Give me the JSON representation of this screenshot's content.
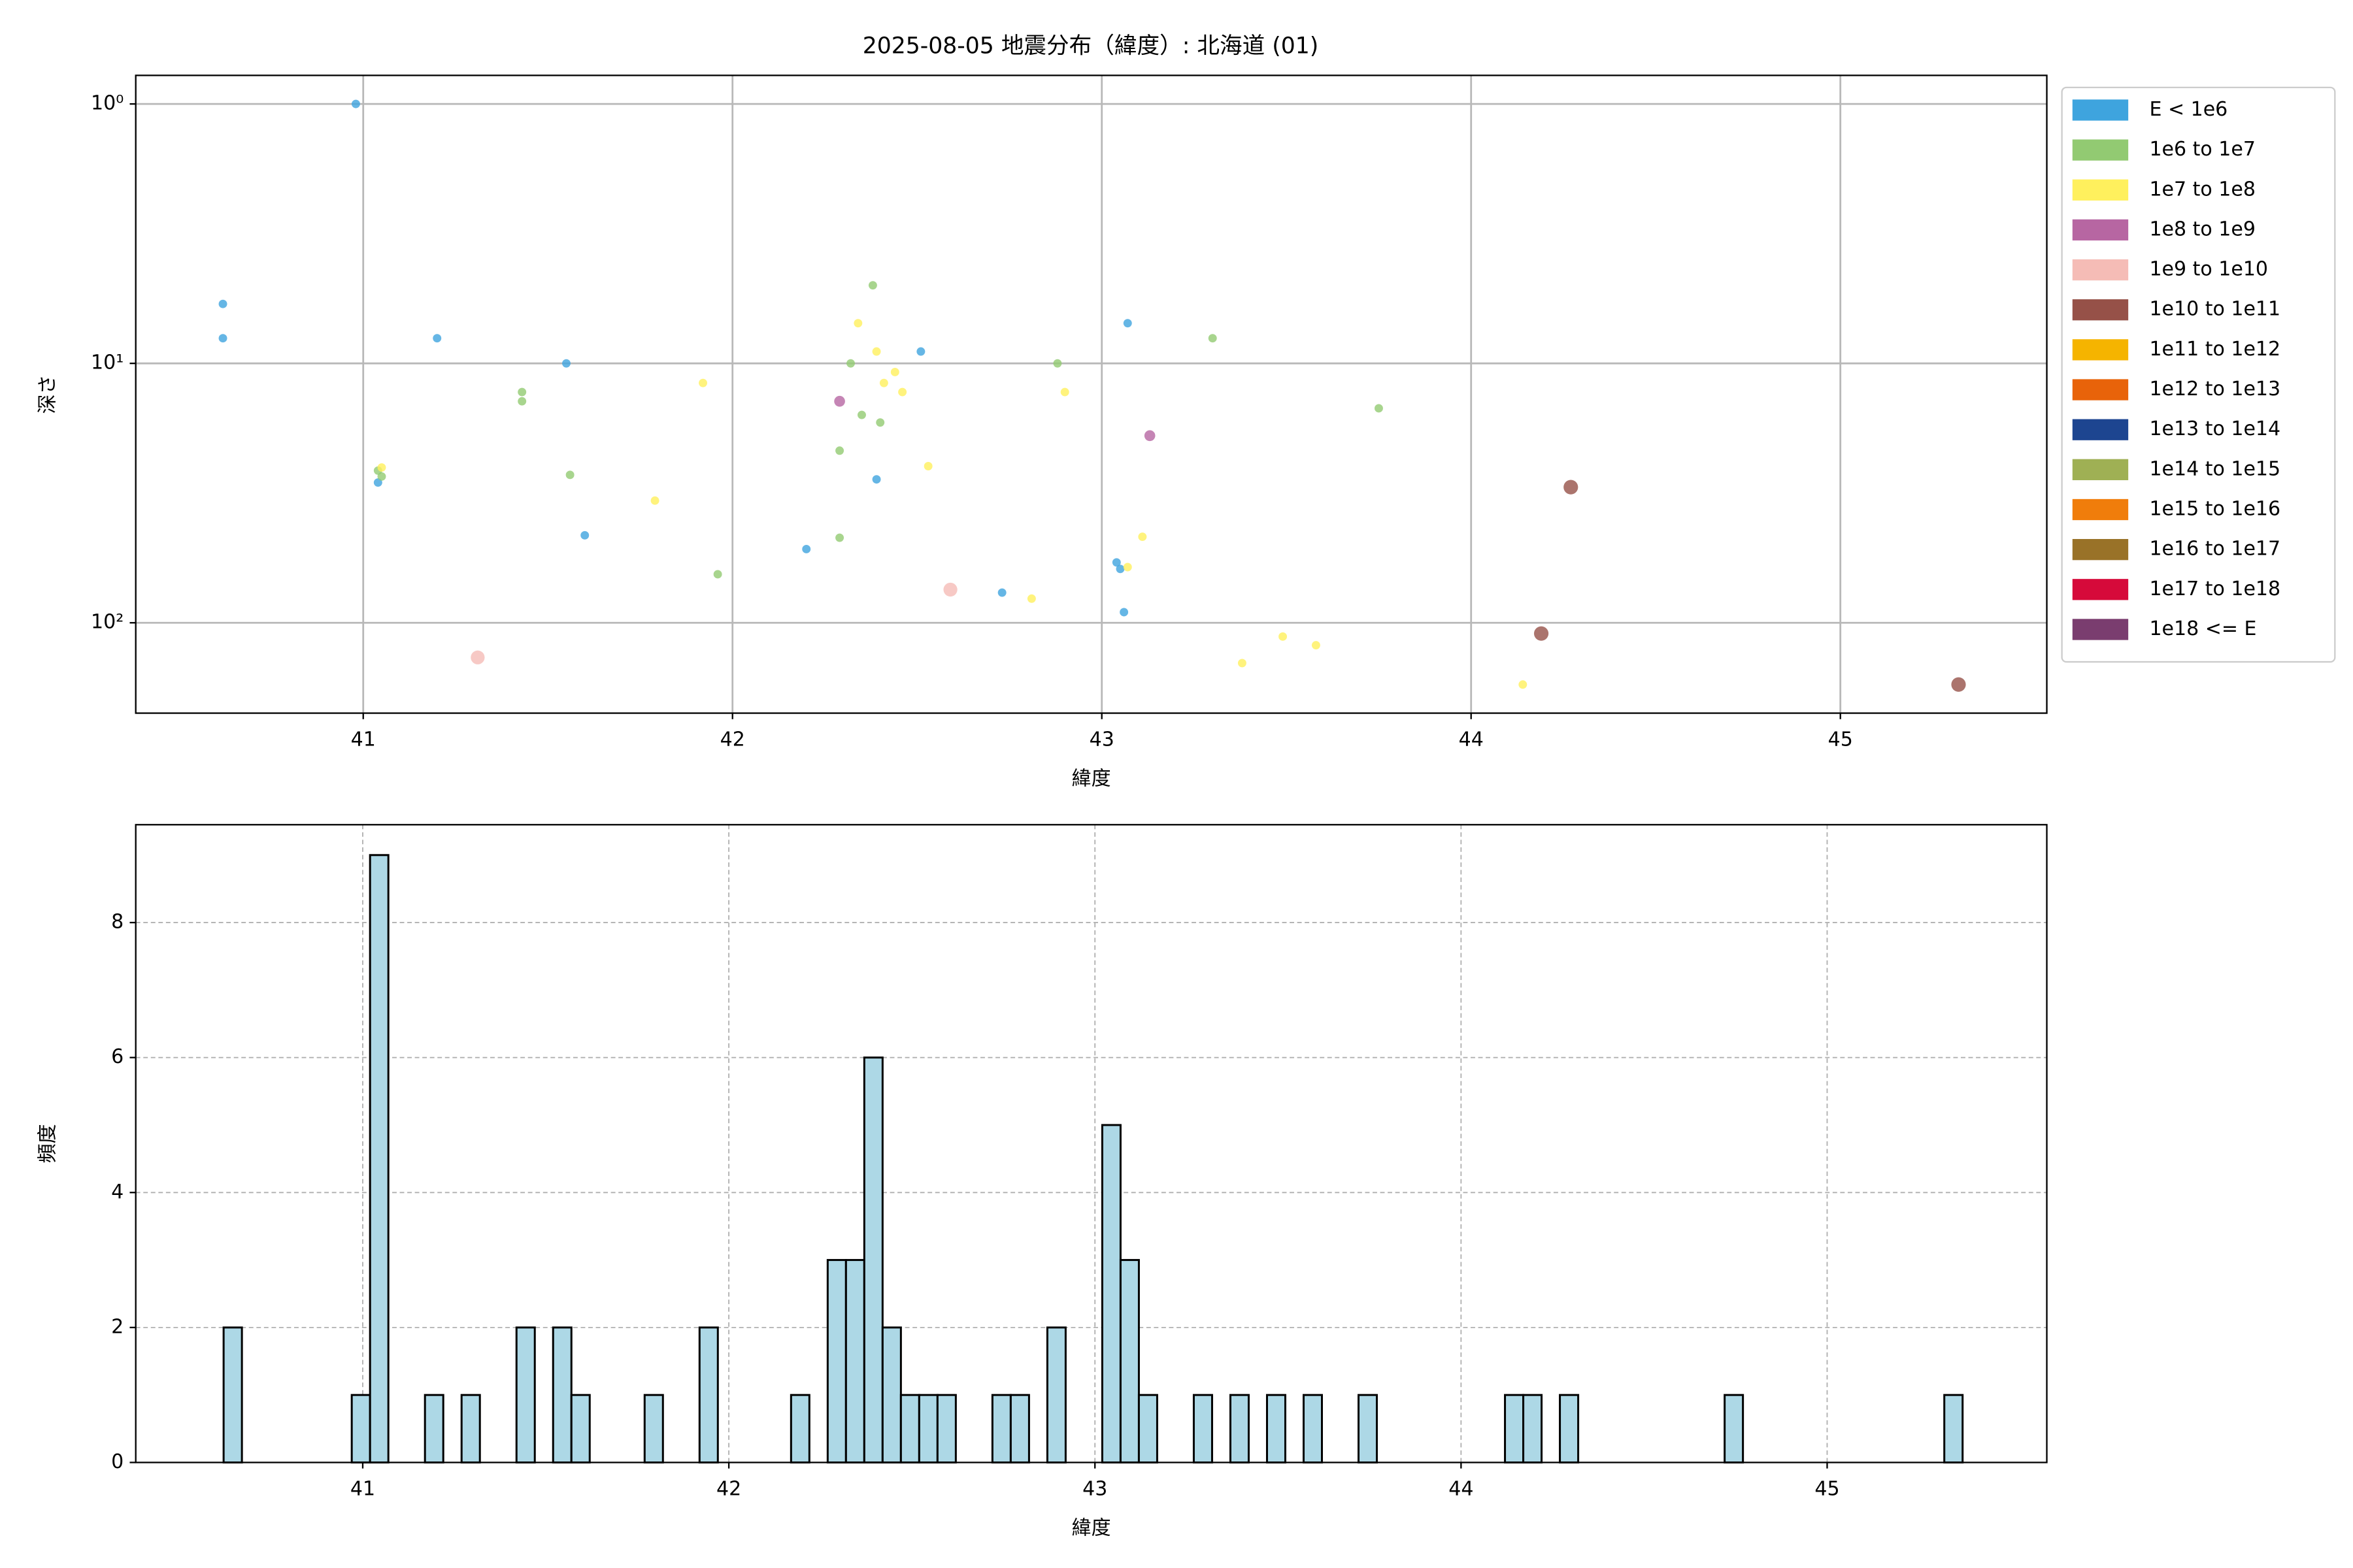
{
  "chart_data": [
    {
      "type": "scatter",
      "title": "2025-08-05 地震分布（緯度）: 北海道 (01)",
      "x_label": "緯度",
      "y_label": "深さ",
      "xlim": [
        40.384,
        45.559
      ],
      "xticks": [
        41,
        42,
        43,
        44,
        45
      ],
      "ylim": [
        0.776,
        223
      ],
      "y_log": true,
      "y_inverted": true,
      "yticks": [
        {
          "value": 1,
          "label": "10⁰"
        },
        {
          "value": 10,
          "label": "10¹"
        },
        {
          "value": 100,
          "label": "10²"
        }
      ],
      "grid": true,
      "grid_style": "solid",
      "legend": "outside-right",
      "series": [
        {
          "name": "E < 1e6",
          "color": "#3ea4de",
          "marker_size": 2.8,
          "x": [
            40.98,
            40.62,
            40.62,
            41.2,
            41.55,
            41.04,
            41.6,
            42.2,
            42.39,
            42.51,
            42.73,
            43.07,
            43.04,
            43.05,
            43.06
          ],
          "values": [
            1.0,
            5.9,
            8.0,
            8.0,
            10,
            28.8,
            46,
            52,
            28,
            9.0,
            76.5,
            7.0,
            58.5,
            62,
            91
          ]
        },
        {
          "name": "1e6 to 1e7",
          "color": "#92ca72",
          "marker_size": 2.8,
          "x": [
            41.43,
            41.43,
            41.04,
            41.05,
            41.56,
            41.96,
            42.38,
            42.32,
            42.35,
            42.4,
            42.29,
            42.29,
            42.88,
            43.3,
            43.75
          ],
          "values": [
            12.9,
            14,
            25.9,
            27.3,
            26.9,
            65,
            5.0,
            10,
            15.8,
            16.9,
            21.7,
            47,
            10,
            8.0,
            14.9
          ]
        },
        {
          "name": "1e7 to 1e8",
          "color": "#fff05d",
          "marker_size": 2.8,
          "x": [
            41.05,
            41.92,
            41.79,
            42.34,
            42.39,
            42.41,
            42.44,
            42.46,
            42.53,
            42.81,
            42.9,
            43.07,
            43.11,
            43.38,
            43.49,
            43.58,
            44.14
          ],
          "values": [
            25.2,
            11.9,
            33.8,
            7.0,
            9.0,
            11.9,
            10.8,
            12.9,
            24.9,
            80.7,
            12.9,
            61,
            46.6,
            143,
            113,
            122,
            173
          ]
        },
        {
          "name": "1e8 to 1e9",
          "color": "#b766a2",
          "marker_size": 3.6,
          "x": [
            42.29,
            43.13
          ],
          "values": [
            14,
            19
          ]
        },
        {
          "name": "1e9 to 1e10",
          "color": "#f5bcb6",
          "marker_size": 4.6,
          "x": [
            41.31,
            42.59
          ],
          "values": [
            136,
            74.5
          ]
        },
        {
          "name": "1e10 to 1e11",
          "color": "#965148",
          "marker_size": 4.8,
          "x": [
            44.27,
            44.19,
            45.32
          ],
          "values": [
            30,
            110,
            173
          ]
        },
        {
          "name": "1e11 to 1e12",
          "color": "#f5b400",
          "x": [],
          "values": []
        },
        {
          "name": "1e12 to 1e13",
          "color": "#e8630a",
          "x": [],
          "values": []
        },
        {
          "name": "1e13 to 1e14",
          "color": "#1d4590",
          "x": [],
          "values": []
        },
        {
          "name": "1e14 to 1e15",
          "color": "#9fb054",
          "x": [],
          "values": []
        },
        {
          "name": "1e15 to 1e16",
          "color": "#f07d0b",
          "x": [],
          "values": []
        },
        {
          "name": "1e16 to 1e17",
          "color": "#997228",
          "x": [],
          "values": []
        },
        {
          "name": "1e17 to 1e18",
          "color": "#d60a3a",
          "x": [],
          "values": []
        },
        {
          "name": "1e18 <= E",
          "color": "#7a3d6f",
          "x": [],
          "values": []
        }
      ]
    },
    {
      "type": "histogram",
      "x_label": "緯度",
      "y_label": "頻度",
      "color": "#add8e6",
      "edge_color": "#000000",
      "xlim": [
        40.38,
        45.6
      ],
      "xticks": [
        41,
        42,
        43,
        44,
        45
      ],
      "ylim": [
        0,
        9.45
      ],
      "yticks": [
        0,
        2,
        4,
        6,
        8
      ],
      "grid": true,
      "grid_style": "dashed",
      "bins": [
        40.62,
        40.67,
        40.72,
        40.77,
        40.82,
        40.87,
        40.92,
        40.97,
        41.02,
        41.07,
        41.12,
        41.17,
        41.22,
        41.27,
        41.32,
        41.37,
        41.42,
        41.47,
        41.52,
        41.57,
        41.62,
        41.67,
        41.72,
        41.77,
        41.82,
        41.87,
        41.92,
        41.97,
        42.02,
        42.07,
        42.12,
        42.17,
        42.22,
        42.27,
        42.32,
        42.37,
        42.42,
        42.47,
        42.52,
        42.57,
        42.62,
        42.67,
        42.72,
        42.77,
        42.82,
        42.87,
        42.92,
        42.97,
        43.02,
        43.07,
        43.12,
        43.17,
        43.22,
        43.27,
        43.32,
        43.37,
        43.42,
        43.47,
        43.52,
        43.57,
        43.62,
        43.67,
        43.72,
        43.77,
        43.82,
        43.87,
        43.92,
        43.97,
        44.02,
        44.07,
        44.12,
        44.17,
        44.22,
        44.27,
        44.32,
        44.37,
        44.42,
        44.47,
        44.52,
        44.57,
        44.62,
        44.67,
        44.72,
        44.77,
        44.82,
        44.87,
        44.92,
        44.97,
        45.02,
        45.07,
        45.12,
        45.17,
        45.22,
        45.27,
        45.32,
        45.37
      ],
      "values": [
        2,
        0,
        0,
        0,
        0,
        0,
        0,
        1,
        9,
        0,
        0,
        1,
        0,
        1,
        0,
        0,
        2,
        0,
        2,
        1,
        0,
        0,
        0,
        1,
        0,
        0,
        2,
        0,
        0,
        0,
        0,
        1,
        0,
        3,
        3,
        6,
        2,
        1,
        1,
        1,
        0,
        0,
        1,
        1,
        0,
        2,
        0,
        0,
        5,
        3,
        1,
        0,
        0,
        1,
        0,
        1,
        0,
        1,
        0,
        1,
        0,
        0,
        1,
        0,
        0,
        0,
        0,
        0,
        0,
        0,
        1,
        1,
        0,
        1,
        0,
        0,
        0,
        0,
        0,
        0,
        0,
        0,
        1,
        0,
        0,
        0,
        0,
        0,
        0,
        0,
        0,
        0,
        0,
        0,
        1
      ]
    }
  ]
}
